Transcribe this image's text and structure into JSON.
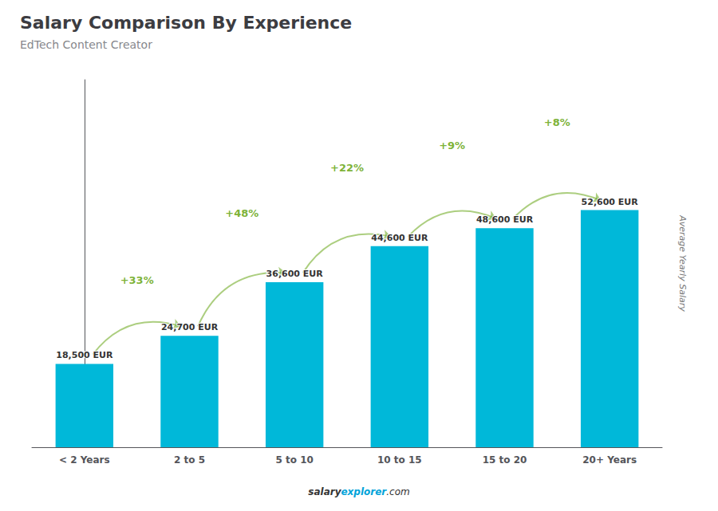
{
  "chart_data": {
    "type": "bar",
    "title": "Salary Comparison By Experience",
    "subtitle": "EdTech Content Creator",
    "ylabel": "Average Yearly Salary",
    "categories": [
      "< 2 Years",
      "2 to 5",
      "5 to 10",
      "10 to 15",
      "15 to 20",
      "20+ Years"
    ],
    "values": [
      18500,
      24700,
      36600,
      44600,
      48600,
      52600
    ],
    "value_labels": [
      "18,500 EUR",
      "24,700 EUR",
      "36,600 EUR",
      "44,600 EUR",
      "48,600 EUR",
      "52,600 EUR"
    ],
    "data_labels": true,
    "color": "#00b8d9",
    "annotations": [
      "+33%",
      "+48%",
      "+22%",
      "+9%",
      "+8%"
    ],
    "footer": [
      "salary",
      "explorer",
      ".com"
    ],
    "ylim": [
      0,
      81530
    ],
    "tick_labels": "x",
    "grid": false
  }
}
